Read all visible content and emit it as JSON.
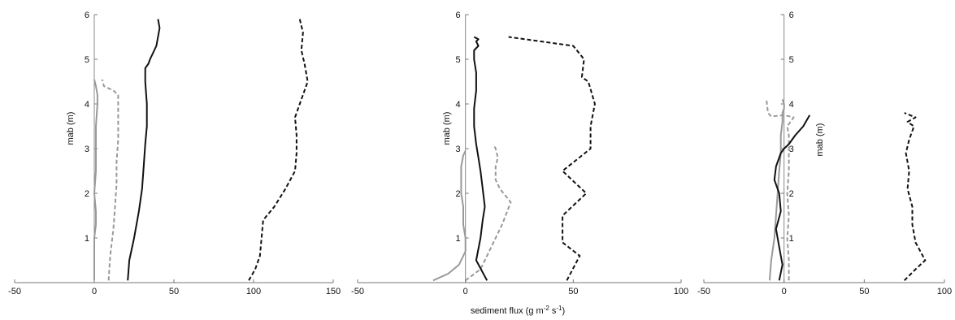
{
  "figure": {
    "shared_xlabel": "sediment flux (g m",
    "shared_xlabel_exp1": "-2",
    "shared_xlabel_mid": " s",
    "shared_xlabel_exp2": "-1",
    "shared_xlabel_end": ")"
  },
  "chart_data": [
    {
      "type": "line",
      "ylabel": "mab (m)",
      "xlim": [
        -50,
        150
      ],
      "ylim": [
        0,
        6
      ],
      "xticks": [
        -50,
        0,
        50,
        100,
        150
      ],
      "yticks": [
        1,
        2,
        3,
        4,
        5,
        6
      ],
      "grid": false,
      "series": [
        {
          "style": "gray-solid",
          "color": "#999999",
          "dash": false,
          "x": [
            0,
            0,
            0,
            1,
            1,
            0,
            1,
            1,
            1,
            1,
            2,
            2,
            1,
            0
          ],
          "y": [
            0.05,
            0.5,
            1.0,
            1.3,
            1.6,
            2.0,
            2.5,
            2.9,
            3.1,
            3.5,
            4.0,
            4.2,
            4.4,
            4.55
          ]
        },
        {
          "style": "gray-dashed",
          "color": "#999999",
          "dash": true,
          "x": [
            9,
            10,
            12,
            13,
            14,
            14,
            15,
            15,
            15,
            12,
            6,
            5
          ],
          "y": [
            0.05,
            0.6,
            1.2,
            1.7,
            2.2,
            2.7,
            3.2,
            3.7,
            4.2,
            4.3,
            4.4,
            4.55
          ]
        },
        {
          "style": "black-solid",
          "color": "#111111",
          "dash": false,
          "x": [
            21,
            22,
            25,
            28,
            30,
            31,
            32,
            33,
            33,
            32,
            32,
            34,
            35,
            39,
            41,
            40
          ],
          "y": [
            0.05,
            0.5,
            1.0,
            1.6,
            2.1,
            2.6,
            3.1,
            3.5,
            4.0,
            4.5,
            4.8,
            4.9,
            5.0,
            5.3,
            5.7,
            5.9
          ]
        },
        {
          "style": "black-dashed",
          "color": "#111111",
          "dash": true,
          "x": [
            97,
            101,
            104,
            105,
            106,
            113,
            120,
            126,
            127,
            127,
            126,
            129,
            134,
            132,
            130,
            131,
            129
          ],
          "y": [
            0.05,
            0.3,
            0.6,
            1.0,
            1.4,
            1.7,
            2.1,
            2.5,
            2.9,
            3.3,
            3.7,
            4.0,
            4.5,
            4.9,
            5.2,
            5.6,
            5.9
          ]
        }
      ]
    },
    {
      "type": "line",
      "ylabel": "mab (m)",
      "xlim": [
        -50,
        100
      ],
      "ylim": [
        0,
        6
      ],
      "xticks": [
        -50,
        0,
        50,
        100
      ],
      "yticks": [
        1,
        2,
        3,
        4,
        5,
        6
      ],
      "grid": false,
      "series": [
        {
          "style": "gray-solid",
          "color": "#999999",
          "dash": false,
          "x": [
            -15,
            -8,
            -3,
            0,
            0,
            -1,
            -1,
            -2,
            -2,
            -2,
            -1,
            0
          ],
          "y": [
            0.05,
            0.2,
            0.4,
            0.7,
            1.0,
            1.3,
            1.7,
            2.0,
            2.3,
            2.6,
            2.85,
            2.95
          ]
        },
        {
          "style": "gray-dashed",
          "color": "#999999",
          "dash": true,
          "x": [
            0,
            7,
            12,
            17,
            21,
            16,
            14,
            14,
            15,
            14,
            13
          ],
          "y": [
            0.05,
            0.3,
            0.8,
            1.3,
            1.8,
            2.1,
            2.3,
            2.6,
            2.8,
            3.0,
            3.1
          ]
        },
        {
          "style": "black-solid",
          "color": "#111111",
          "dash": false,
          "x": [
            10,
            5,
            7,
            8,
            9,
            8,
            7,
            6,
            5,
            4,
            4,
            5,
            5,
            4,
            4,
            6,
            5,
            6,
            4
          ],
          "y": [
            0.05,
            0.5,
            1.0,
            1.4,
            1.7,
            2.1,
            2.5,
            2.8,
            3.1,
            3.5,
            3.9,
            4.3,
            4.7,
            5.0,
            5.2,
            5.3,
            5.4,
            5.45,
            5.5
          ]
        },
        {
          "style": "black-dashed",
          "color": "#111111",
          "dash": true,
          "x": [
            47,
            53,
            45,
            45,
            56,
            45,
            58,
            58,
            60,
            57,
            54,
            55,
            50,
            35,
            20
          ],
          "y": [
            0.05,
            0.6,
            0.9,
            1.5,
            2.0,
            2.5,
            3.0,
            3.5,
            4.0,
            4.5,
            4.6,
            5.0,
            5.3,
            5.4,
            5.5
          ]
        }
      ]
    },
    {
      "type": "line",
      "ylabel": "mab (m)",
      "xlim": [
        -50,
        100
      ],
      "ylim": [
        0,
        6
      ],
      "xticks": [
        -50,
        0,
        50,
        100
      ],
      "yticks": [
        1,
        2,
        3,
        4,
        5,
        6
      ],
      "grid": false,
      "series": [
        {
          "style": "gray-solid",
          "color": "#999999",
          "dash": false,
          "x": [
            -9,
            -8,
            -6,
            -5,
            -4,
            -3,
            -2,
            -2,
            -1,
            -1,
            -1,
            0,
            0,
            -1
          ],
          "y": [
            0.05,
            0.5,
            1.0,
            1.5,
            2.0,
            2.5,
            2.9,
            3.3,
            3.6,
            3.7,
            3.8,
            3.9,
            4.0,
            4.1
          ]
        },
        {
          "style": "gray-dashed",
          "color": "#999999",
          "dash": true,
          "x": [
            3,
            3,
            2,
            3,
            2,
            3,
            3,
            3,
            2,
            4,
            6,
            0,
            -8,
            -10,
            -11
          ],
          "y": [
            0.05,
            0.5,
            1.0,
            1.5,
            2.0,
            2.5,
            3.0,
            3.3,
            3.5,
            3.6,
            3.7,
            3.75,
            3.72,
            3.8,
            4.1
          ]
        },
        {
          "style": "black-solid",
          "color": "#111111",
          "dash": false,
          "x": [
            -3,
            -1,
            -3,
            -5,
            -2,
            -3,
            -6,
            -5,
            -2,
            0,
            3,
            7,
            12,
            16
          ],
          "y": [
            0.05,
            0.4,
            0.8,
            1.2,
            1.6,
            2.0,
            2.3,
            2.6,
            2.9,
            3.0,
            3.1,
            3.3,
            3.5,
            3.75
          ]
        },
        {
          "style": "black-dashed",
          "color": "#111111",
          "dash": true,
          "x": [
            75,
            82,
            88,
            82,
            80,
            80,
            77,
            78,
            76,
            78,
            81,
            77,
            82,
            75
          ],
          "y": [
            0.05,
            0.3,
            0.5,
            0.9,
            1.3,
            1.7,
            2.1,
            2.5,
            2.9,
            3.2,
            3.5,
            3.6,
            3.7,
            3.8
          ]
        }
      ]
    }
  ]
}
